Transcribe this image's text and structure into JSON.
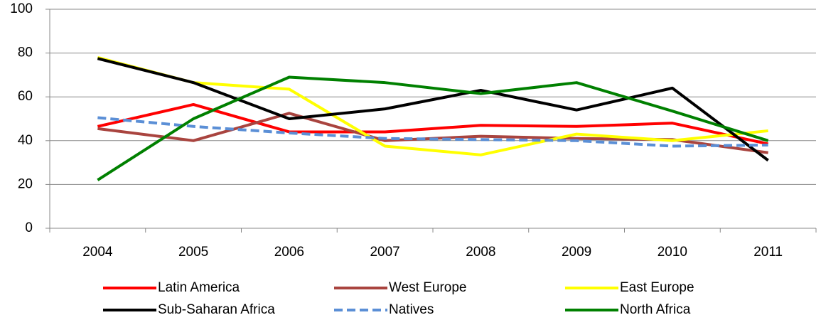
{
  "chart_data": {
    "type": "line",
    "categories": [
      "2004",
      "2005",
      "2006",
      "2007",
      "2008",
      "2009",
      "2010",
      "2011"
    ],
    "series": [
      {
        "name": "Latin America",
        "color": "#ff0000",
        "values": [
          46.5,
          56.5,
          44,
          44,
          47,
          46.5,
          48,
          38.5
        ]
      },
      {
        "name": "West Europe",
        "color": "#a9443f",
        "values": [
          45.5,
          40,
          52.5,
          40,
          42,
          41,
          40.5,
          34.5
        ]
      },
      {
        "name": "East Europe",
        "color": "#ffff00",
        "values": [
          78,
          66.5,
          63.5,
          37.5,
          33.5,
          43,
          40,
          44.5
        ]
      },
      {
        "name": "Sub-Saharan Africa",
        "color": "#000000",
        "values": [
          77.5,
          66.5,
          50,
          54.5,
          63,
          54,
          64,
          31
        ]
      },
      {
        "name": "Natives",
        "color": "#5b8fd6",
        "dashed": true,
        "values": [
          50.5,
          46.5,
          43.5,
          41,
          40.5,
          40,
          37.5,
          38
        ]
      },
      {
        "name": "North Africa",
        "color": "#008000",
        "values": [
          22,
          50,
          69,
          66.5,
          61.5,
          66.5,
          53.5,
          40
        ]
      }
    ],
    "ylim": [
      0,
      100
    ],
    "yticks": [
      0,
      20,
      40,
      60,
      80,
      100
    ],
    "grid": true
  }
}
